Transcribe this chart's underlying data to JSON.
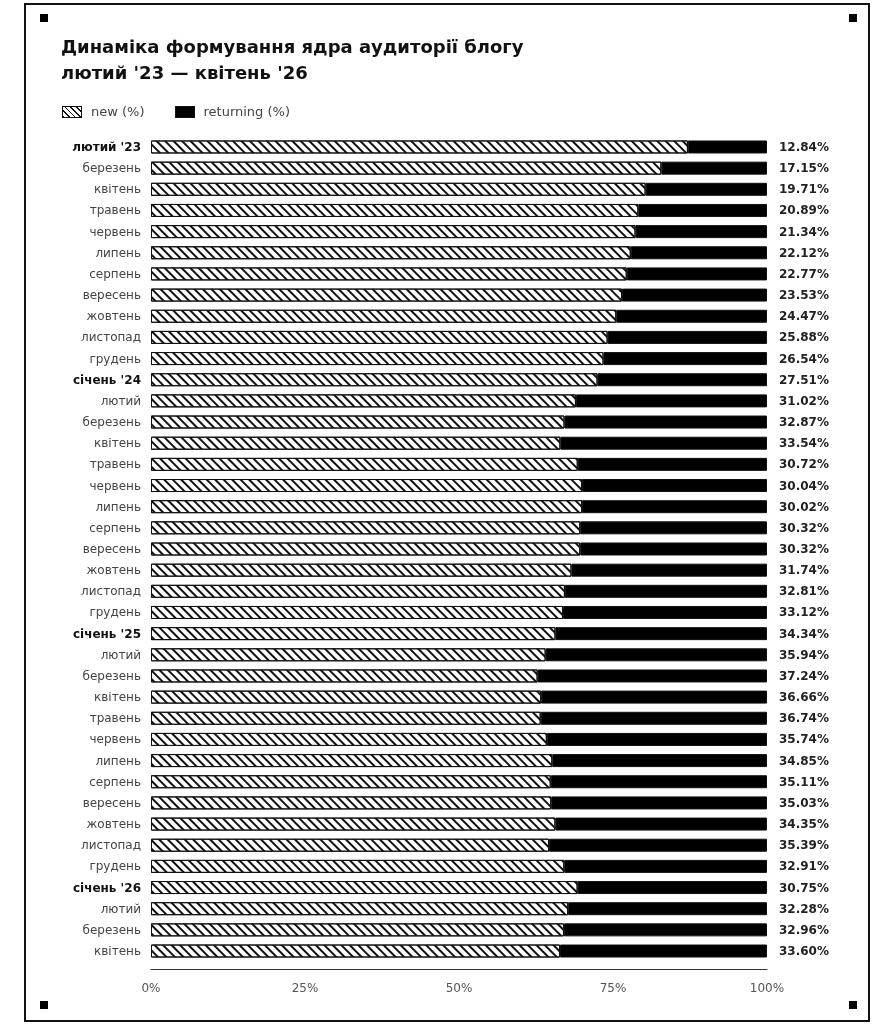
{
  "chart_data": {
    "type": "bar",
    "orientation": "horizontal",
    "stacked": true,
    "title": "Динаміка формування ядра аудиторії блогу",
    "subtitle": "лютий '23 — квітень '26",
    "legend": "top left",
    "categories": [
      "лютий '23",
      "березень",
      "квітень",
      "травень",
      "червень",
      "липень",
      "серпень",
      "вересень",
      "жовтень",
      "листопад",
      "грудень",
      "січень '24",
      "лютий",
      "березень",
      "квітень",
      "травень",
      "червень",
      "липень",
      "серпень",
      "вересень",
      "жовтень",
      "листопад",
      "грудень",
      "січень '25",
      "лютий",
      "березень",
      "квітень",
      "травень",
      "червень",
      "липень",
      "серпень",
      "вересень",
      "жовтень",
      "листопад",
      "грудень",
      "січень '26",
      "лютий",
      "березень",
      "квітень"
    ],
    "series": [
      {
        "name": "new (%)",
        "color": "#ffffff",
        "values": [
          87.16,
          82.85,
          80.29,
          79.11,
          78.66,
          77.88,
          77.23,
          76.47,
          75.53,
          74.12,
          73.46,
          72.49,
          68.98,
          67.13,
          66.46,
          69.28,
          69.96,
          69.98,
          69.68,
          69.68,
          68.26,
          67.19,
          66.88,
          65.66,
          64.06,
          62.76,
          63.34,
          63.26,
          64.26,
          65.15,
          64.89,
          64.97,
          65.65,
          64.61,
          67.09,
          69.25,
          67.72,
          67.04,
          66.4
        ]
      },
      {
        "name": "returning (%)",
        "color": "#000000",
        "values": [
          12.84,
          17.15,
          19.71,
          20.89,
          21.34,
          22.12,
          22.77,
          23.53,
          24.47,
          25.88,
          26.54,
          27.51,
          31.02,
          32.87,
          33.54,
          30.72,
          30.04,
          30.02,
          30.32,
          30.32,
          31.74,
          32.81,
          33.12,
          34.34,
          35.94,
          37.24,
          36.66,
          36.74,
          35.74,
          34.85,
          35.11,
          35.03,
          34.35,
          35.39,
          32.91,
          30.75,
          32.28,
          32.96,
          33.6
        ],
        "value_labels": [
          "12.84%",
          "17.15%",
          "19.71%",
          "20.89%",
          "21.34%",
          "22.12%",
          "22.77%",
          "23.53%",
          "24.47%",
          "25.88%",
          "26.54%",
          "27.51%",
          "31.02%",
          "32.87%",
          "33.54%",
          "30.72%",
          "30.04%",
          "30.02%",
          "30.32%",
          "30.32%",
          "31.74%",
          "32.81%",
          "33.12%",
          "34.34%",
          "35.94%",
          "37.24%",
          "36.66%",
          "36.74%",
          "35.74%",
          "34.85%",
          "35.11%",
          "35.03%",
          "34.35%",
          "35.39%",
          "32.91%",
          "30.75%",
          "32.28%",
          "32.96%",
          "33.60%"
        ]
      }
    ],
    "xlim": [
      0,
      100
    ],
    "xticks": [
      {
        "value": 0,
        "label": "0%"
      },
      {
        "value": 25,
        "label": "25%"
      },
      {
        "value": 50,
        "label": "50%"
      },
      {
        "value": 75,
        "label": "75%"
      },
      {
        "value": 100,
        "label": "100%"
      }
    ]
  }
}
